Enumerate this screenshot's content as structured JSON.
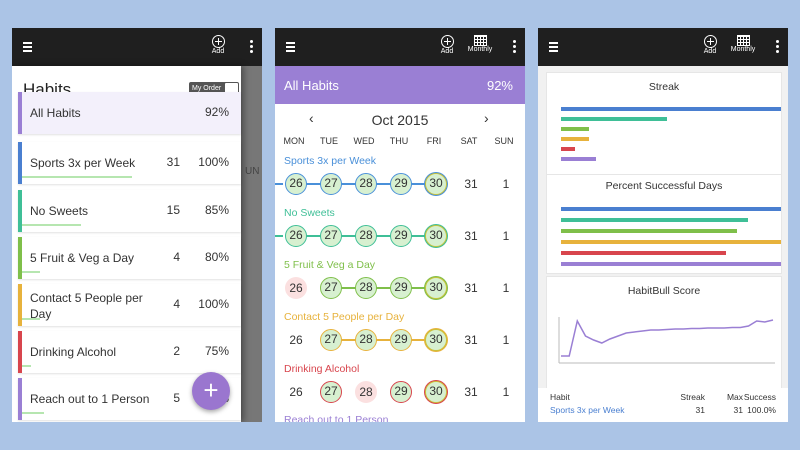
{
  "toolbar": {
    "add_label": "Add",
    "monthly_label": "Monthly"
  },
  "panel1": {
    "title": "Habits",
    "my_order_label": "My Order",
    "bg_day_label": "UN",
    "habits": [
      {
        "name": "All Habits",
        "streak": "",
        "percent": "92%",
        "color": "#9a7fd4",
        "progress": 0
      },
      {
        "name": "Sports 3x per Week",
        "streak": "31",
        "percent": "100%",
        "color": "#4a7fd0",
        "progress": 0.5
      },
      {
        "name": "No Sweets",
        "streak": "15",
        "percent": "85%",
        "color": "#3fbf97",
        "progress": 0.27
      },
      {
        "name": "5 Fruit & Veg a Day",
        "streak": "4",
        "percent": "80%",
        "color": "#7fbf4a",
        "progress": 0.08
      },
      {
        "name": "Contact 5 People per Day",
        "streak": "4",
        "percent": "100%",
        "color": "#e7b23c",
        "progress": 0.08
      },
      {
        "name": "Drinking Alcohol",
        "streak": "2",
        "percent": "75%",
        "color": "#d8454d",
        "progress": 0.04
      },
      {
        "name": "Reach out to 1 Person",
        "streak": "5",
        "percent": "100%",
        "color": "#9a7fd4",
        "progress": 0.1
      }
    ]
  },
  "panel2": {
    "header_title": "All Habits",
    "header_value": "92%",
    "month": "Oct 2015",
    "prev_icon": "‹",
    "next_icon": "›",
    "weekdays": [
      "MON",
      "TUE",
      "WED",
      "THU",
      "FRI",
      "SAT",
      "SUN"
    ],
    "habits": [
      {
        "name": "Sports 3x per Week",
        "color": "#4a90d9",
        "days": [
          "26",
          "27",
          "28",
          "29",
          "30",
          "31",
          "1"
        ],
        "states": [
          "done",
          "done",
          "done",
          "done",
          "today",
          "plain",
          "plain"
        ]
      },
      {
        "name": "No Sweets",
        "color": "#3fbf97",
        "days": [
          "26",
          "27",
          "28",
          "29",
          "30",
          "31",
          "1"
        ],
        "states": [
          "done",
          "done",
          "done",
          "done",
          "today",
          "plain",
          "plain"
        ]
      },
      {
        "name": "5 Fruit & Veg a Day",
        "color": "#7fbf4a",
        "days": [
          "26",
          "27",
          "28",
          "29",
          "30",
          "31",
          "1"
        ],
        "states": [
          "missed",
          "done",
          "done",
          "done",
          "today",
          "plain",
          "plain"
        ]
      },
      {
        "name": "Contact 5 People per Day",
        "color": "#e7b23c",
        "days": [
          "26",
          "27",
          "28",
          "29",
          "30",
          "31",
          "1"
        ],
        "states": [
          "plain",
          "done",
          "done",
          "done",
          "today",
          "plain",
          "plain"
        ]
      },
      {
        "name": "Drinking Alcohol",
        "color": "#d8454d",
        "days": [
          "26",
          "27",
          "28",
          "29",
          "30",
          "31",
          "1"
        ],
        "states": [
          "plain",
          "done",
          "missed",
          "done",
          "today",
          "plain",
          "plain"
        ]
      },
      {
        "name": "Reach out to 1 Person",
        "color": "#9a7fd4",
        "days": [],
        "states": []
      }
    ]
  },
  "panel3": {
    "streak_title": "Streak",
    "streak_values": [
      31,
      15,
      4,
      4,
      2,
      5
    ],
    "streak_max": 31,
    "percent_title": "Percent Successful Days",
    "percent_values": [
      100,
      85,
      80,
      100,
      75,
      100
    ],
    "bar_colors": [
      "#4a7fd0",
      "#3fbf97",
      "#7fbf4a",
      "#e7b23c",
      "#d8454d",
      "#9a7fd4"
    ],
    "score_title": "HabitBull Score",
    "score_line_color": "#9a7fd4",
    "score_series": [
      10,
      10,
      80,
      50,
      42,
      36,
      44,
      50,
      56,
      58,
      60,
      62,
      62,
      63,
      64,
      64,
      65,
      65,
      66,
      66,
      66,
      67,
      67,
      70,
      80,
      78,
      82
    ],
    "table": {
      "headers": [
        "Habit",
        "Streak",
        "Max",
        "Success"
      ],
      "rows": [
        {
          "habit": "Sports 3x per Week",
          "streak": "31",
          "max": "31",
          "success": "100.0%"
        }
      ]
    }
  }
}
